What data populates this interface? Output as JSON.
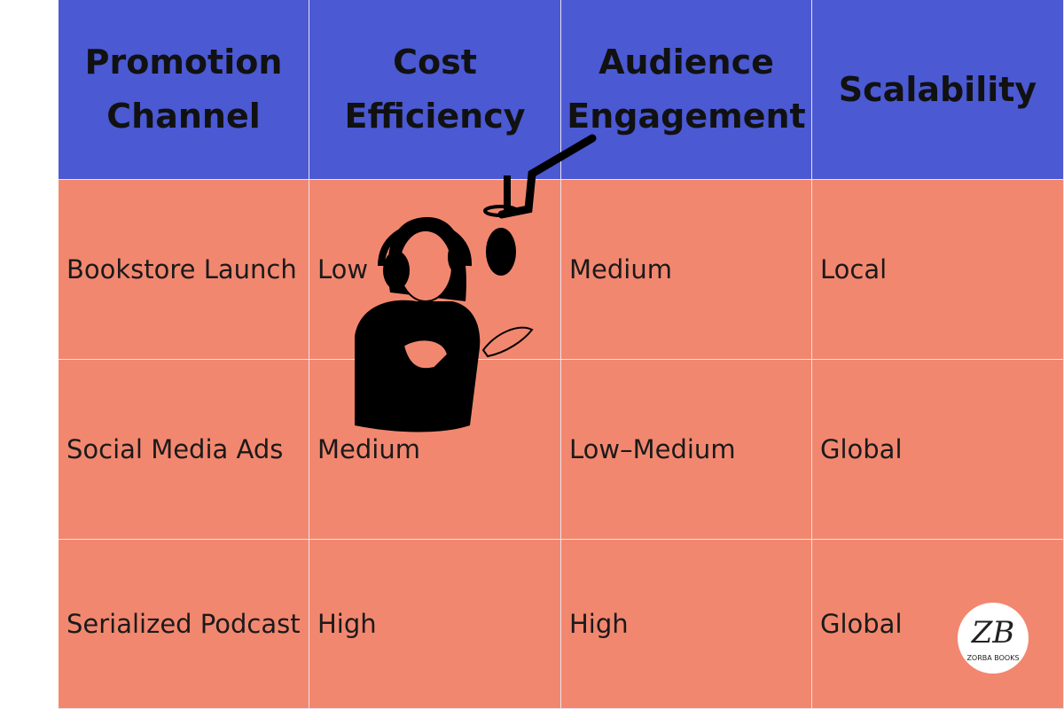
{
  "table": {
    "headers": [
      "Promotion Channel",
      "Cost Efficiency",
      "Audience Engagement",
      "Scalability"
    ],
    "rows": [
      [
        "Bookstore Launch",
        "Low",
        "Medium",
        "Local"
      ],
      [
        "Social Media Ads",
        "Medium",
        "Low–Medium",
        "Global"
      ],
      [
        "Serialized Podcast",
        "High",
        "High",
        "Global"
      ]
    ]
  },
  "logo": {
    "initials": "ZB",
    "text": "ZORBA BOOKS"
  }
}
